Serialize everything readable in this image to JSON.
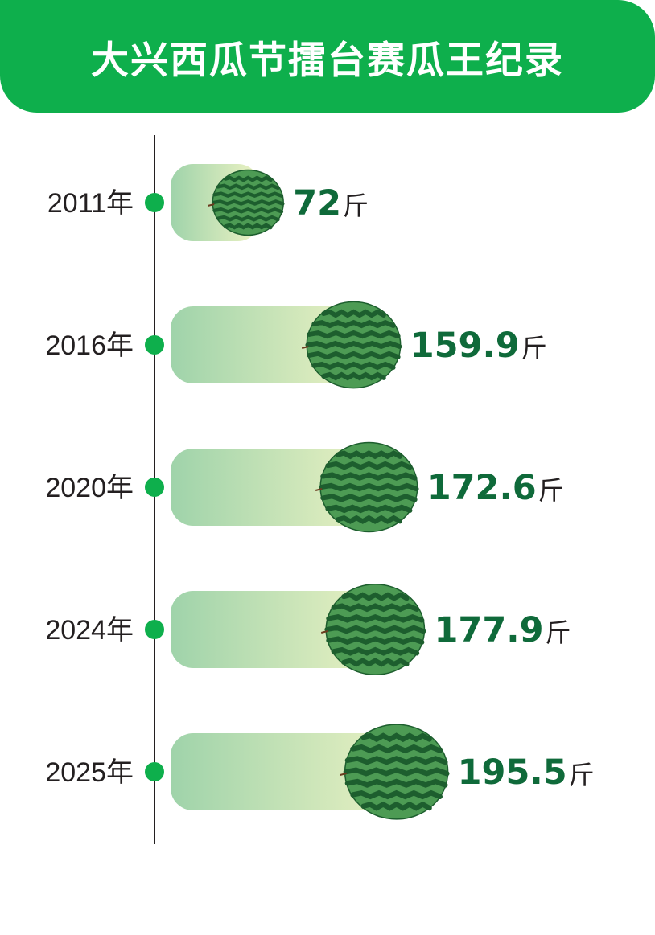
{
  "title": "大兴西瓜节擂台赛瓜王纪录",
  "chart_data": {
    "type": "bar",
    "orientation": "horizontal",
    "title": "大兴西瓜节擂台赛瓜王纪录",
    "unit": "斤",
    "categories": [
      "2011年",
      "2016年",
      "2020年",
      "2024年",
      "2025年"
    ],
    "values": [
      72,
      159.9,
      172.6,
      177.9,
      195.5
    ],
    "value_labels": [
      "72",
      "159.9",
      "172.6",
      "177.9",
      "195.5"
    ]
  },
  "colors": {
    "banner": "#0eaf4c",
    "dot": "#0eaf4c",
    "bar_start": "#9fd3aa",
    "bar_end": "#eef3c4",
    "value_text": "#0f6a3a",
    "melon_dark": "#1d5e2e",
    "melon_light": "#4d9b54"
  },
  "icons": {
    "bar_end": "watermelon-icon",
    "timeline_marker": "dot-icon"
  }
}
